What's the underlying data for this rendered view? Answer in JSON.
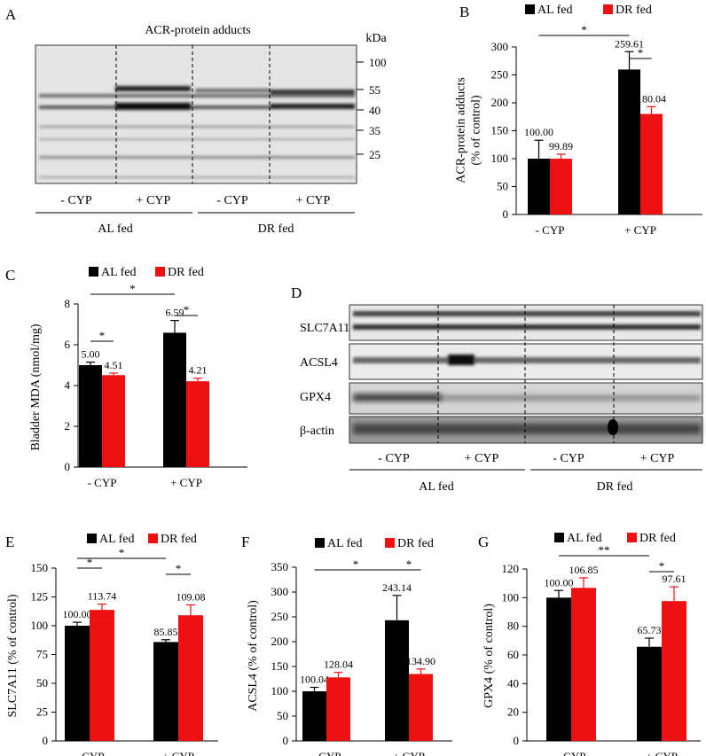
{
  "figure": {
    "panels": {
      "A": {
        "letter": "A",
        "title": "ACR-protein adducts",
        "unit": "kDa",
        "markers": [
          "100",
          "55",
          "40",
          "35",
          "25"
        ],
        "conditions": [
          "- CYP",
          "+ CYP",
          "- CYP",
          "+ CYP"
        ],
        "groups": [
          "AL fed",
          "DR fed"
        ]
      },
      "D": {
        "letter": "D",
        "proteins": [
          "SLC7A11",
          "ACSL4",
          "GPX4",
          "β-actin"
        ],
        "conditions": [
          "- CYP",
          "+ CYP",
          "- CYP",
          "+ CYP"
        ],
        "groups": [
          "AL fed",
          "DR fed"
        ]
      }
    },
    "colors": {
      "al": "#000000",
      "dr": "#ee1111"
    }
  },
  "chart_data": [
    {
      "id": "B",
      "letter": "B",
      "type": "bar",
      "ylabel_lines": [
        "ACR-protein adducts",
        "(% of control)"
      ],
      "ylim": [
        0,
        300
      ],
      "yticks": [
        0,
        50,
        100,
        150,
        200,
        250,
        300
      ],
      "categories": [
        "- CYP",
        "+ CYP"
      ],
      "series": [
        {
          "name": "AL fed",
          "values": [
            100.0,
            259.61
          ],
          "errors": [
            33,
            32
          ],
          "labels": [
            "100.00",
            "259.61"
          ]
        },
        {
          "name": "DR fed",
          "values": [
            99.89,
            180.04
          ],
          "errors": [
            8,
            13
          ],
          "labels": [
            "99.89",
            "180.04"
          ]
        }
      ],
      "significance": [
        {
          "label": "*",
          "from": [
            0,
            0
          ],
          "to": [
            1,
            0
          ]
        },
        {
          "label": "*",
          "from": [
            1,
            0
          ],
          "to": [
            1,
            1
          ]
        }
      ]
    },
    {
      "id": "C",
      "letter": "C",
      "type": "bar",
      "ylabel_lines": [
        "Bladder MDA (nmol/mg)"
      ],
      "ylim": [
        0,
        8
      ],
      "yticks": [
        0,
        2,
        4,
        6,
        8
      ],
      "categories": [
        "- CYP",
        "+ CYP"
      ],
      "series": [
        {
          "name": "AL fed",
          "values": [
            5.0,
            6.59
          ],
          "errors": [
            0.15,
            0.6
          ],
          "labels": [
            "5.00",
            "6.59"
          ]
        },
        {
          "name": "DR fed",
          "values": [
            4.51,
            4.21
          ],
          "errors": [
            0.1,
            0.15
          ],
          "labels": [
            "4.51",
            "4.21"
          ]
        }
      ],
      "significance": [
        {
          "label": "*",
          "from": [
            0,
            0
          ],
          "to": [
            0,
            1
          ]
        },
        {
          "label": "*",
          "from": [
            0,
            0
          ],
          "to": [
            1,
            0
          ]
        },
        {
          "label": "*",
          "from": [
            1,
            0
          ],
          "to": [
            1,
            1
          ]
        }
      ]
    },
    {
      "id": "E",
      "letter": "E",
      "type": "bar",
      "ylabel_lines": [
        "SLC7A11 (% of control)"
      ],
      "ylim": [
        0,
        150
      ],
      "yticks": [
        0,
        25,
        50,
        75,
        100,
        125,
        150
      ],
      "categories": [
        "- CYP",
        "+ CYP"
      ],
      "series": [
        {
          "name": "AL fed",
          "values": [
            100.0,
            85.85
          ],
          "errors": [
            3,
            2
          ],
          "labels": [
            "100.00",
            "85.85"
          ]
        },
        {
          "name": "DR fed",
          "values": [
            113.74,
            109.08
          ],
          "errors": [
            5,
            9
          ],
          "labels": [
            "113.74",
            "109.08"
          ]
        }
      ],
      "significance": [
        {
          "label": "*",
          "from": [
            0,
            0
          ],
          "to": [
            0,
            1
          ]
        },
        {
          "label": "*",
          "from": [
            0,
            0
          ],
          "to": [
            1,
            0
          ]
        },
        {
          "label": "*",
          "from": [
            1,
            0
          ],
          "to": [
            1,
            1
          ]
        }
      ]
    },
    {
      "id": "F",
      "letter": "F",
      "type": "bar",
      "ylabel_lines": [
        "ACSL4 (% of control)"
      ],
      "ylim": [
        0,
        350
      ],
      "yticks": [
        0,
        50,
        100,
        150,
        200,
        250,
        300,
        350
      ],
      "categories": [
        "- CYP",
        "+ CYP"
      ],
      "series": [
        {
          "name": "AL fed",
          "values": [
            100.04,
            243.14
          ],
          "errors": [
            8,
            50
          ],
          "labels": [
            "100.04",
            "243.14"
          ]
        },
        {
          "name": "DR fed",
          "values": [
            128.04,
            134.9
          ],
          "errors": [
            10,
            10
          ],
          "labels": [
            "128.04",
            "134.90"
          ]
        }
      ],
      "significance": [
        {
          "label": "*",
          "from": [
            0,
            0
          ],
          "to": [
            1,
            0
          ]
        },
        {
          "label": "*",
          "from": [
            1,
            0
          ],
          "to": [
            1,
            1
          ]
        }
      ]
    },
    {
      "id": "G",
      "letter": "G",
      "type": "bar",
      "ylabel_lines": [
        "GPX4 (% of control)"
      ],
      "ylim": [
        0,
        120
      ],
      "yticks": [
        0,
        20,
        40,
        60,
        80,
        100,
        120
      ],
      "categories": [
        "- CYP",
        "+ CYP"
      ],
      "series": [
        {
          "name": "AL fed",
          "values": [
            100.0,
            65.73
          ],
          "errors": [
            5,
            6
          ],
          "labels": [
            "100.00",
            "65.73"
          ]
        },
        {
          "name": "DR fed",
          "values": [
            106.85,
            97.61
          ],
          "errors": [
            7,
            10
          ],
          "labels": [
            "106.85",
            "97.61"
          ]
        }
      ],
      "significance": [
        {
          "label": "**",
          "from": [
            0,
            0
          ],
          "to": [
            1,
            0
          ]
        },
        {
          "label": "*",
          "from": [
            1,
            0
          ],
          "to": [
            1,
            1
          ]
        }
      ]
    }
  ]
}
